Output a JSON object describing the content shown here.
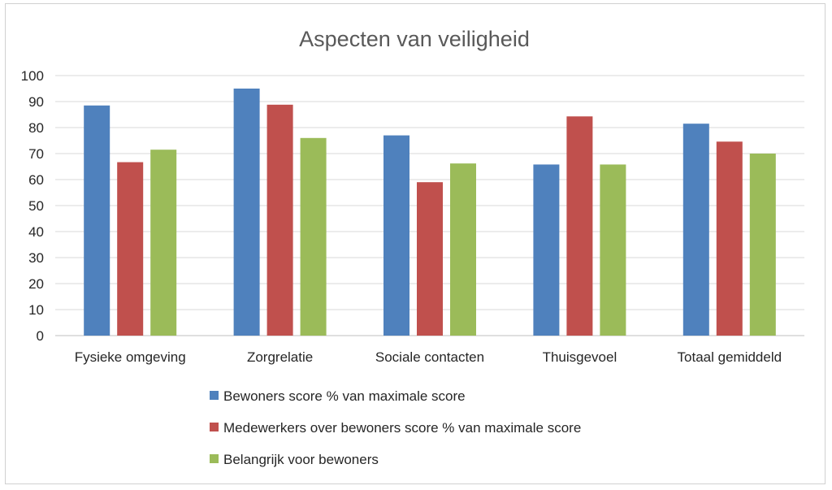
{
  "chart_data": {
    "type": "bar",
    "title": "Aspecten van veiligheid",
    "xlabel": "",
    "ylabel": "",
    "ylim": [
      0,
      100
    ],
    "yticks": [
      0,
      10,
      20,
      30,
      40,
      50,
      60,
      70,
      80,
      90,
      100
    ],
    "grid": true,
    "legend_position": "bottom",
    "categories": [
      "Fysieke omgeving",
      "Zorgrelatie",
      "Sociale contacten",
      "Thuisgevoel",
      "Totaal gemiddeld"
    ],
    "series": [
      {
        "name": "Bewoners score % van maximale score",
        "color": "#4f81bd",
        "values": [
          88.5,
          95,
          77,
          65.8,
          81.5
        ]
      },
      {
        "name": "Medewerkers over bewoners score % van maximale score",
        "color": "#c0504d",
        "values": [
          66.7,
          88.8,
          59,
          84.3,
          74.6
        ]
      },
      {
        "name": "Belangrijk voor bewoners",
        "color": "#9bbb59",
        "values": [
          71.5,
          76,
          66.2,
          65.8,
          70
        ]
      }
    ]
  }
}
